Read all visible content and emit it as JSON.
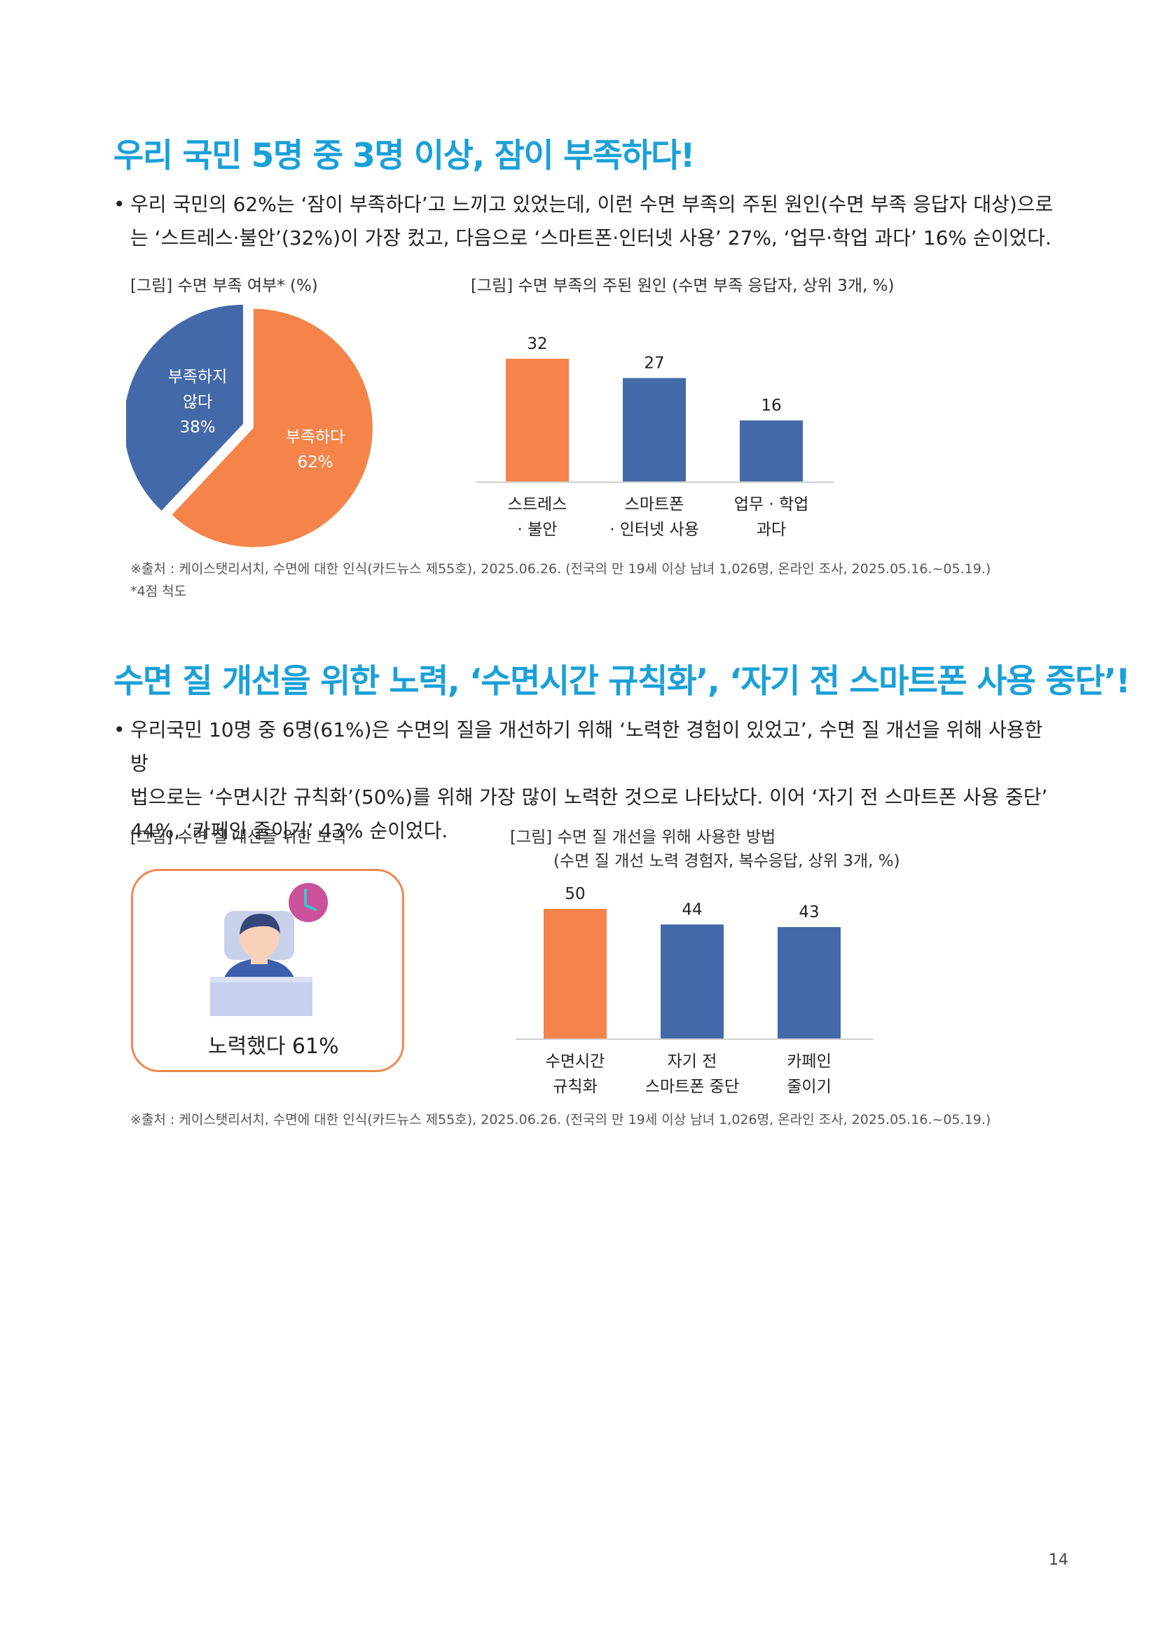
{
  "section1": {
    "heading": "우리 국민 5명 중 3명 이상, 잠이 부족하다!",
    "bullet_marker": "•",
    "bullet_line1": "우리 국민의 62%는 ‘잠이 부족하다’고 느끼고 있었는데, 이런 수면 부족의 주된 원인(수면 부족 응답자 대상)으로",
    "bullet_line2": "는 ‘스트레스·불안’(32%)이 가장 컸고, 다음으로 ‘스마트폰·인터넷 사용’ 27%, ‘업무·학업 과다’ 16% 순이었다.",
    "pie_caption": "[그림] 수면 부족 여부* (%)",
    "bar_caption": "[그림] 수면 부족의 주된 원인 (수면 부족 응답자, 상위 3개, %)",
    "source": "※출처 : 케이스탯리서치, 수면에 대한 인식(카드뉴스 제55호), 2025.06.26. (전국의 만 19세 이상 남녀 1,026명, 온라인 조사, 2025.05.16.~05.19.)",
    "note": "*4점 척도"
  },
  "section2": {
    "heading": "수면 질 개선을 위한 노력, ‘수면시간 규칙화’, ‘자기 전 스마트폰 사용 중단’!",
    "bullet_marker": "•",
    "bullet_line1": "우리국민 10명 중 6명(61%)은 수면의 질을 개선하기 위해 ‘노력한 경험이 있었고’, 수면 질 개선을 위해 사용한 방",
    "bullet_line2": "법으로는 ‘수면시간 규칙화’(50%)를 위해 가장 많이 노력한 것으로 나타났다. 이어 ‘자기 전 스마트폰 사용 중단’",
    "bullet_line3": "44%, ‘카페인 줄이기’ 43% 순이었다.",
    "effort_caption": "[그림] 수면 질 개선을 위한 노력",
    "effort_label": "노력했다 61%",
    "effort_value": 61,
    "bar_caption_line1": "[그림] 수면 질 개선을 위해 사용한 방법",
    "bar_caption_line2": "(수면 질 개선 노력 경험자, 복수응답, 상위 3개, %)",
    "source": "※출처 : 케이스탯리서치, 수면에 대한 인식(카드뉴스 제55호), 2025.06.26. (전국의 만 19세 이상 남녀 1,026명, 온라인 조사, 2025.05.16.~05.19.)"
  },
  "page_number": "14",
  "colors": {
    "heading": "#1aa0d8",
    "orange": "#f4844a",
    "blue": "#4469a8",
    "card_border": "#f0874e"
  },
  "chart_data": [
    {
      "type": "pie",
      "title": "[그림] 수면 부족 여부* (%)",
      "slices": [
        {
          "label_line1": "부족하다",
          "label_line2": "",
          "value": 62,
          "display": "62%",
          "color": "#f4844a"
        },
        {
          "label_line1": "부족하지",
          "label_line2": "않다",
          "value": 38,
          "display": "38%",
          "color": "#4469a8"
        }
      ]
    },
    {
      "type": "bar",
      "title": "[그림] 수면 부족의 주된 원인 (수면 부족 응답자, 상위 3개, %)",
      "categories": [
        {
          "line1": "스트레스",
          "line2": "· 불안"
        },
        {
          "line1": "스마트폰",
          "line2": "· 인터넷 사용"
        },
        {
          "line1": "업무 · 학업",
          "line2": "과다"
        }
      ],
      "values": [
        32,
        27,
        16
      ],
      "colors": [
        "#f4844a",
        "#4469a8",
        "#4469a8"
      ],
      "ylim": [
        0,
        32
      ]
    },
    {
      "type": "bar",
      "title": "[그림] 수면 질 개선을 위해 사용한 방법",
      "categories": [
        {
          "line1": "수면시간",
          "line2": "규칙화"
        },
        {
          "line1": "자기 전",
          "line2": "스마트폰 중단"
        },
        {
          "line1": "카페인",
          "line2": "줄이기"
        }
      ],
      "values": [
        50,
        44,
        43
      ],
      "colors": [
        "#f4844a",
        "#4469a8",
        "#4469a8"
      ],
      "ylim": [
        0,
        50
      ]
    }
  ]
}
